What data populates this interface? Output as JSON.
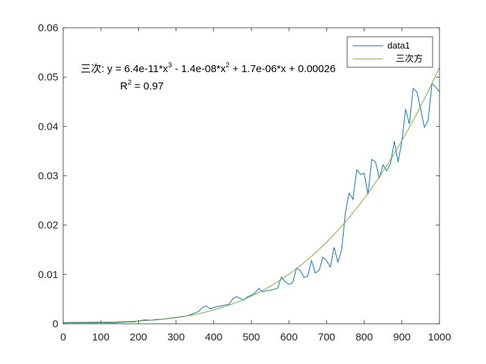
{
  "chart_data": {
    "type": "line",
    "xlim": [
      0,
      1000
    ],
    "ylim": [
      0,
      0.06
    ],
    "x_ticks": [
      "0",
      "100",
      "200",
      "300",
      "400",
      "500",
      "600",
      "700",
      "800",
      "900",
      "1000"
    ],
    "y_ticks": [
      "0",
      "0.01",
      "0.02",
      "0.03",
      "0.04",
      "0.05",
      "0.06"
    ],
    "grid": false,
    "legend_placement": "top-right",
    "series": [
      {
        "name": "data1",
        "color": "#0072BD",
        "x": [
          0,
          10,
          20,
          30,
          40,
          50,
          60,
          70,
          80,
          90,
          100,
          110,
          120,
          130,
          140,
          150,
          160,
          170,
          180,
          190,
          200,
          210,
          220,
          230,
          240,
          250,
          260,
          270,
          280,
          290,
          300,
          310,
          320,
          330,
          340,
          350,
          360,
          370,
          380,
          390,
          400,
          410,
          420,
          430,
          440,
          450,
          460,
          470,
          480,
          490,
          500,
          510,
          520,
          530,
          540,
          550,
          560,
          570,
          580,
          590,
          600,
          610,
          620,
          630,
          640,
          650,
          660,
          670,
          680,
          690,
          700,
          710,
          720,
          730,
          740,
          750,
          760,
          770,
          780,
          790,
          800,
          810,
          820,
          830,
          840,
          850,
          860,
          870,
          880,
          890,
          900,
          910,
          920,
          930,
          940,
          950,
          960,
          970,
          980,
          990,
          1000
        ],
        "y": [
          0.0002,
          0.0002,
          0.0002,
          0.0002,
          0.0002,
          0.0002,
          0.0002,
          0.0002,
          0.0002,
          0.0002,
          0.0003,
          0.0002,
          0.0002,
          0.0002,
          0.0002,
          0.0003,
          0.0003,
          0.0004,
          0.0004,
          0.0004,
          0.0006,
          0.0007,
          0.0008,
          0.0007,
          0.0008,
          0.0009,
          0.0009,
          0.001,
          0.0011,
          0.0012,
          0.0013,
          0.0014,
          0.0015,
          0.0016,
          0.0019,
          0.0022,
          0.0025,
          0.0033,
          0.0036,
          0.003,
          0.0033,
          0.0035,
          0.0036,
          0.0038,
          0.0039,
          0.005,
          0.0055,
          0.0052,
          0.0048,
          0.0055,
          0.0058,
          0.0063,
          0.0072,
          0.0065,
          0.0067,
          0.0068,
          0.007,
          0.0072,
          0.0095,
          0.0085,
          0.008,
          0.0083,
          0.0113,
          0.0108,
          0.0094,
          0.0097,
          0.0128,
          0.0103,
          0.0108,
          0.0135,
          0.0128,
          0.0115,
          0.0155,
          0.0125,
          0.015,
          0.0225,
          0.0265,
          0.0252,
          0.0312,
          0.0303,
          0.0305,
          0.0262,
          0.0333,
          0.0328,
          0.0295,
          0.0322,
          0.031,
          0.0325,
          0.037,
          0.0328,
          0.037,
          0.0435,
          0.0405,
          0.0477,
          0.047,
          0.0435,
          0.0398,
          0.0413,
          0.0487,
          0.048,
          0.047
        ]
      },
      {
        "name": "三次方",
        "color": "#77AC30",
        "fit": {
          "a3": 6.4e-11,
          "a2": -1.4e-08,
          "a1": 1.7e-06,
          "a0": 0.00026
        }
      }
    ],
    "annotation": {
      "line1_prefix": "三次:  y = 6.4e-11*x",
      "line1_sup1": "3",
      "line1_mid": " - 1.4e-08*x",
      "line1_sup2": "2",
      "line1_suffix": " + 1.7e-06*x + 0.00026",
      "line2_prefix": "R",
      "line2_sup": "2",
      "line2_suffix": " = 0.97"
    }
  }
}
